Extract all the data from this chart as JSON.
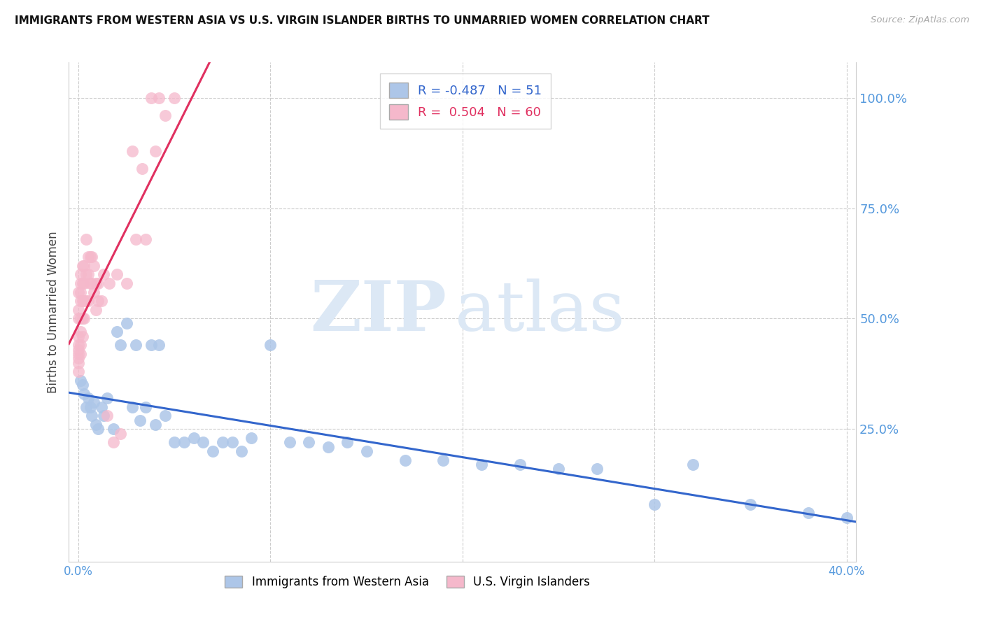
{
  "title": "IMMIGRANTS FROM WESTERN ASIA VS U.S. VIRGIN ISLANDER BIRTHS TO UNMARRIED WOMEN CORRELATION CHART",
  "source": "Source: ZipAtlas.com",
  "ylabel": "Births to Unmarried Women",
  "blue_R": -0.487,
  "blue_N": 51,
  "pink_R": 0.504,
  "pink_N": 60,
  "blue_label": "Immigrants from Western Asia",
  "pink_label": "U.S. Virgin Islanders",
  "blue_color": "#adc6e8",
  "blue_line_color": "#3366cc",
  "pink_color": "#f5b8cb",
  "pink_line_color": "#e03060",
  "background_color": "#ffffff",
  "grid_color": "#cccccc",
  "watermark_zip": "ZIP",
  "watermark_atlas": "atlas",
  "watermark_color": "#dce8f5",
  "right_axis_color": "#5599dd",
  "title_color": "#111111",
  "blue_x": [
    0.001,
    0.002,
    0.003,
    0.004,
    0.005,
    0.006,
    0.007,
    0.008,
    0.009,
    0.01,
    0.012,
    0.013,
    0.015,
    0.018,
    0.02,
    0.022,
    0.025,
    0.028,
    0.03,
    0.032,
    0.035,
    0.038,
    0.04,
    0.042,
    0.045,
    0.05,
    0.055,
    0.06,
    0.065,
    0.07,
    0.075,
    0.08,
    0.085,
    0.09,
    0.1,
    0.11,
    0.12,
    0.13,
    0.14,
    0.15,
    0.17,
    0.19,
    0.21,
    0.23,
    0.25,
    0.27,
    0.3,
    0.32,
    0.35,
    0.38,
    0.4
  ],
  "blue_y": [
    0.36,
    0.35,
    0.33,
    0.3,
    0.32,
    0.3,
    0.28,
    0.31,
    0.26,
    0.25,
    0.3,
    0.28,
    0.32,
    0.25,
    0.47,
    0.44,
    0.49,
    0.3,
    0.44,
    0.27,
    0.3,
    0.44,
    0.26,
    0.44,
    0.28,
    0.22,
    0.22,
    0.23,
    0.22,
    0.2,
    0.22,
    0.22,
    0.2,
    0.23,
    0.44,
    0.22,
    0.22,
    0.21,
    0.22,
    0.2,
    0.18,
    0.18,
    0.17,
    0.17,
    0.16,
    0.16,
    0.08,
    0.17,
    0.08,
    0.06,
    0.05
  ],
  "pink_x": [
    0.0,
    0.0,
    0.0,
    0.0,
    0.0,
    0.0,
    0.0,
    0.0,
    0.0,
    0.0,
    0.001,
    0.001,
    0.001,
    0.001,
    0.001,
    0.001,
    0.001,
    0.001,
    0.002,
    0.002,
    0.002,
    0.002,
    0.002,
    0.003,
    0.003,
    0.003,
    0.003,
    0.004,
    0.004,
    0.004,
    0.005,
    0.005,
    0.005,
    0.006,
    0.006,
    0.007,
    0.007,
    0.008,
    0.008,
    0.009,
    0.009,
    0.01,
    0.01,
    0.012,
    0.013,
    0.015,
    0.016,
    0.018,
    0.02,
    0.022,
    0.025,
    0.028,
    0.03,
    0.033,
    0.035,
    0.038,
    0.04,
    0.042,
    0.045,
    0.05
  ],
  "pink_y": [
    0.56,
    0.52,
    0.5,
    0.46,
    0.44,
    0.43,
    0.42,
    0.41,
    0.4,
    0.38,
    0.6,
    0.58,
    0.56,
    0.54,
    0.5,
    0.47,
    0.44,
    0.42,
    0.62,
    0.58,
    0.54,
    0.5,
    0.46,
    0.62,
    0.58,
    0.54,
    0.5,
    0.68,
    0.6,
    0.54,
    0.64,
    0.6,
    0.54,
    0.64,
    0.58,
    0.64,
    0.58,
    0.62,
    0.56,
    0.58,
    0.52,
    0.58,
    0.54,
    0.54,
    0.6,
    0.28,
    0.58,
    0.22,
    0.6,
    0.24,
    0.58,
    0.88,
    0.68,
    0.84,
    0.68,
    1.0,
    0.88,
    1.0,
    0.96,
    1.0
  ],
  "xlim": [
    -0.005,
    0.405
  ],
  "ylim": [
    -0.05,
    1.08
  ],
  "xticks": [
    0.0,
    0.4
  ],
  "xtick_labels": [
    "0.0%",
    "40.0%"
  ],
  "yticks_right": [
    0.25,
    0.5,
    0.75,
    1.0
  ],
  "ytick_right_labels": [
    "25.0%",
    "50.0%",
    "75.0%",
    "100.0%"
  ]
}
